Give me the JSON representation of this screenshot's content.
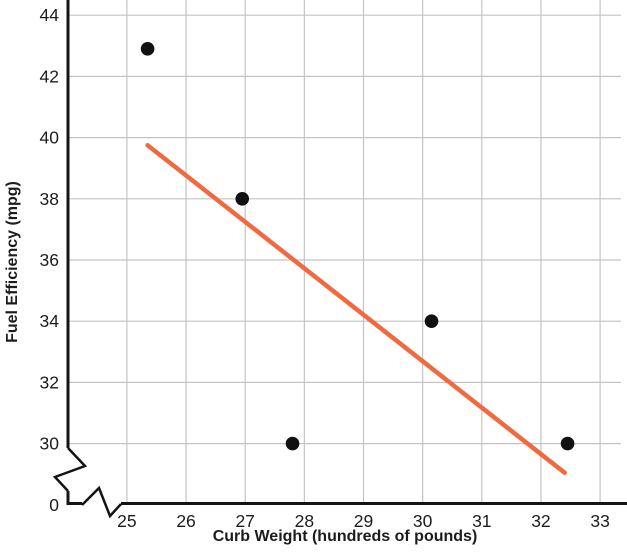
{
  "chart_data": {
    "type": "scatter",
    "title": "",
    "xlabel": "Curb Weight (hundreds of pounds)",
    "ylabel": "Fuel Efficiency (mpg)",
    "x_ticks": [
      25,
      26,
      27,
      28,
      29,
      30,
      31,
      32,
      33
    ],
    "y_ticks": [
      30,
      32,
      34,
      36,
      38,
      40,
      42,
      44
    ],
    "origin_tick_label": "0",
    "xlim": [
      25,
      33
    ],
    "ylim_shown": [
      30,
      44
    ],
    "grid": true,
    "axis_break_x": true,
    "axis_break_y": true,
    "legend": "none",
    "points": [
      {
        "x": 25.35,
        "y": 42.9
      },
      {
        "x": 26.95,
        "y": 38.0
      },
      {
        "x": 27.8,
        "y": 30.0
      },
      {
        "x": 30.15,
        "y": 34.0
      },
      {
        "x": 32.45,
        "y": 30.0
      }
    ],
    "trendline": {
      "x1": 25.35,
      "y1": 39.75,
      "x2": 32.4,
      "y2": 29.05
    },
    "colors": {
      "point": "#111111",
      "trendline": "#EF6A41",
      "grid": "#c4c4c4",
      "axis": "#141414",
      "text": "#1c1c1c"
    }
  }
}
